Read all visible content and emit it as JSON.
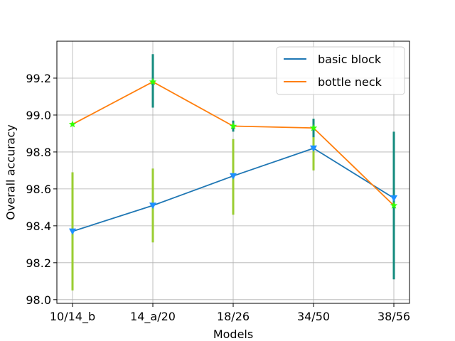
{
  "chart_data": {
    "type": "line",
    "title": "",
    "xlabel": "Models",
    "ylabel": "Overall accuracy",
    "categories": [
      "10/14_b",
      "14_a/20",
      "18/26",
      "34/50",
      "38/56"
    ],
    "ylim": [
      97.98,
      99.4
    ],
    "yticks": [
      98.0,
      98.2,
      98.4,
      98.6,
      98.8,
      99.0,
      99.2
    ],
    "ytick_labels": [
      "98.0",
      "98.2",
      "98.4",
      "98.6",
      "98.8",
      "99.0",
      "99.2"
    ],
    "grid": true,
    "legend_position": "top-right",
    "series": [
      {
        "name": "basic block",
        "color": "#1f77b4",
        "marker": "triangle-down",
        "marker_color": "#1e90ff",
        "values": [
          98.37,
          98.51,
          98.67,
          98.82,
          98.55
        ],
        "error_low": [
          98.05,
          98.31,
          98.46,
          98.7,
          98.11
        ],
        "error_high": [
          98.69,
          98.71,
          98.87,
          98.94,
          98.91
        ],
        "error_colors": [
          "#9acd32",
          "#9acd32",
          "#9acd32",
          "#9acd32",
          "#148b7e"
        ]
      },
      {
        "name": "bottle neck",
        "color": "#ff7f0e",
        "marker": "star",
        "marker_color": "#33ff00",
        "values": [
          98.95,
          99.18,
          98.94,
          98.93,
          98.51
        ],
        "error_low": [
          98.94,
          99.04,
          98.91,
          98.88,
          98.5
        ],
        "error_high": [
          98.96,
          99.33,
          98.97,
          98.98,
          98.52
        ],
        "error_colors": [
          "#9acd32",
          "#148b7e",
          "#148b7e",
          "#148b7e",
          "#148b7e"
        ]
      }
    ]
  }
}
